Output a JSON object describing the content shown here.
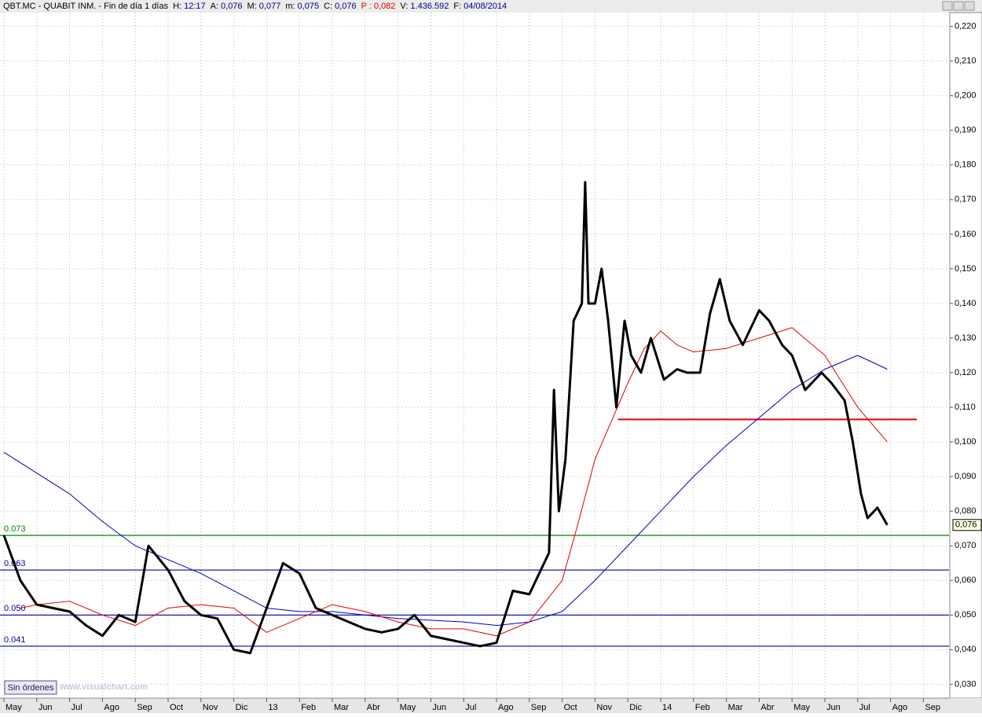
{
  "header": {
    "title": "QBT.MC - QUABIT INM. - Fin de día 1 días",
    "fields": [
      {
        "label": "H:",
        "value": "12:17"
      },
      {
        "label": "A:",
        "value": "0,076"
      },
      {
        "label": "M:",
        "value": "0,077"
      },
      {
        "label": "m:",
        "value": "0,075"
      },
      {
        "label": "C:",
        "value": "0,076"
      },
      {
        "label": "P :",
        "value": "0,082"
      },
      {
        "label": "V:",
        "value": "1.436.592"
      },
      {
        "label": "F:",
        "value": "04/08/2014"
      }
    ]
  },
  "footer": {
    "button": "Sin órdenes",
    "watermark": "www.visualchart.com"
  },
  "chart_data": {
    "type": "line",
    "xlim": [
      -0.12,
      28.78
    ],
    "ylim": [
      0.026,
      0.224
    ],
    "grid": true,
    "xticks": [
      {
        "value": 0,
        "label": "May"
      },
      {
        "value": 1,
        "label": "Jun"
      },
      {
        "value": 2,
        "label": "Jul"
      },
      {
        "value": 3,
        "label": "Ago"
      },
      {
        "value": 4,
        "label": "Sep"
      },
      {
        "value": 5,
        "label": "Oct"
      },
      {
        "value": 6,
        "label": "Nov"
      },
      {
        "value": 7,
        "label": "Dic"
      },
      {
        "value": 8,
        "label": "13"
      },
      {
        "value": 9,
        "label": "Feb"
      },
      {
        "value": 10,
        "label": "Mar"
      },
      {
        "value": 11,
        "label": "Abr"
      },
      {
        "value": 12,
        "label": "May"
      },
      {
        "value": 13,
        "label": "Jun"
      },
      {
        "value": 14,
        "label": "Jul"
      },
      {
        "value": 15,
        "label": "Ago"
      },
      {
        "value": 16,
        "label": "Sep"
      },
      {
        "value": 17,
        "label": "Oct"
      },
      {
        "value": 18,
        "label": "Nov"
      },
      {
        "value": 19,
        "label": "Dic"
      },
      {
        "value": 20,
        "label": "14"
      },
      {
        "value": 21,
        "label": "Feb"
      },
      {
        "value": 22,
        "label": "Mar"
      },
      {
        "value": 23,
        "label": "Abr"
      },
      {
        "value": 24,
        "label": "May"
      },
      {
        "value": 25,
        "label": "Jun"
      },
      {
        "value": 26,
        "label": "Jul"
      },
      {
        "value": 27,
        "label": "Ago"
      },
      {
        "value": 28,
        "label": "Sep"
      }
    ],
    "yticks": [
      {
        "value": 0.22,
        "label": "0,220"
      },
      {
        "value": 0.21,
        "label": "0,210"
      },
      {
        "value": 0.2,
        "label": "0,200"
      },
      {
        "value": 0.19,
        "label": "0,190"
      },
      {
        "value": 0.18,
        "label": "0,180"
      },
      {
        "value": 0.17,
        "label": "0,170"
      },
      {
        "value": 0.16,
        "label": "0,160"
      },
      {
        "value": 0.15,
        "label": "0,150"
      },
      {
        "value": 0.14,
        "label": "0,140"
      },
      {
        "value": 0.13,
        "label": "0,130"
      },
      {
        "value": 0.12,
        "label": "0,120"
      },
      {
        "value": 0.11,
        "label": "0,110"
      },
      {
        "value": 0.1,
        "label": "0,100"
      },
      {
        "value": 0.09,
        "label": "0,090"
      },
      {
        "value": 0.08,
        "label": "0,080"
      },
      {
        "value": 0.07,
        "label": "0,070"
      },
      {
        "value": 0.06,
        "label": "0,060"
      },
      {
        "value": 0.05,
        "label": "0,050"
      },
      {
        "value": 0.04,
        "label": "0,040"
      },
      {
        "value": 0.03,
        "label": "0,030"
      }
    ],
    "series": [
      {
        "color": "#000000",
        "width": 3,
        "x": [
          0,
          0.5,
          1,
          1.5,
          2,
          2.5,
          3,
          3.5,
          4,
          4.4,
          5,
          5.5,
          6,
          6.5,
          7,
          7.5,
          8,
          8.5,
          9,
          9.5,
          10,
          10.5,
          11,
          11.5,
          12,
          12.5,
          13,
          13.5,
          14,
          14.5,
          15,
          15.5,
          16,
          16.6,
          16.75,
          16.9,
          17.1,
          17.35,
          17.6,
          17.7,
          17.8,
          18,
          18.2,
          18.4,
          18.65,
          18.9,
          19.1,
          19.4,
          19.7,
          20.1,
          20.5,
          20.8,
          21.2,
          21.5,
          21.8,
          22.1,
          22.5,
          23,
          23.3,
          23.7,
          24,
          24.4,
          24.9,
          25.2,
          25.6,
          25.85,
          26.1,
          26.3,
          26.6,
          26.9
        ],
        "values": [
          0.073,
          0.06,
          0.053,
          0.052,
          0.051,
          0.047,
          0.044,
          0.05,
          0.048,
          0.07,
          0.063,
          0.054,
          0.05,
          0.049,
          0.04,
          0.039,
          0.052,
          0.065,
          0.062,
          0.052,
          0.05,
          0.048,
          0.046,
          0.045,
          0.046,
          0.05,
          0.044,
          0.043,
          0.042,
          0.041,
          0.042,
          0.057,
          0.056,
          0.068,
          0.115,
          0.08,
          0.095,
          0.135,
          0.14,
          0.175,
          0.14,
          0.14,
          0.15,
          0.135,
          0.11,
          0.135,
          0.125,
          0.12,
          0.13,
          0.118,
          0.121,
          0.12,
          0.12,
          0.137,
          0.147,
          0.135,
          0.128,
          0.138,
          0.135,
          0.128,
          0.125,
          0.115,
          0.12,
          0.117,
          0.112,
          0.1,
          0.085,
          0.078,
          0.081,
          0.076
        ]
      },
      {
        "color": "#e00000",
        "width": 1,
        "x": [
          0.5,
          1,
          2,
          3,
          4,
          5,
          6,
          7,
          8,
          9,
          10,
          11,
          12,
          13,
          14,
          15,
          16,
          17,
          17.5,
          18,
          19,
          19.5,
          20,
          20.5,
          21,
          22,
          23,
          24,
          25,
          26,
          26.9
        ],
        "values": [
          0.052,
          0.053,
          0.054,
          0.05,
          0.047,
          0.052,
          0.053,
          0.052,
          0.045,
          0.049,
          0.053,
          0.051,
          0.048,
          0.046,
          0.046,
          0.044,
          0.048,
          0.06,
          0.077,
          0.095,
          0.117,
          0.127,
          0.132,
          0.128,
          0.126,
          0.127,
          0.13,
          0.133,
          0.125,
          0.11,
          0.1
        ]
      },
      {
        "color": "#0000c0",
        "width": 1,
        "x": [
          0,
          2,
          3,
          4,
          5,
          6,
          7,
          8,
          9,
          10,
          12,
          14,
          15,
          16,
          17,
          18,
          19,
          20,
          21,
          22,
          23,
          24,
          25,
          26,
          26.9
        ],
        "values": [
          0.097,
          0.085,
          0.077,
          0.07,
          0.066,
          0.062,
          0.057,
          0.052,
          0.051,
          0.051,
          0.049,
          0.048,
          0.047,
          0.048,
          0.051,
          0.06,
          0.07,
          0.08,
          0.09,
          0.099,
          0.107,
          0.115,
          0.121,
          0.125,
          0.121
        ]
      }
    ],
    "levels": [
      {
        "value": 0.073,
        "label": "0.073",
        "color": "#008000"
      },
      {
        "value": 0.063,
        "label": "0.063",
        "color": "#0000a0"
      },
      {
        "value": 0.05,
        "label": "0.050",
        "color": "#0000a0"
      },
      {
        "value": 0.041,
        "label": "0.041",
        "color": "#0000a0"
      }
    ],
    "segment": {
      "value": 0.1065,
      "x": [
        18.7,
        27.8
      ],
      "color": "#e00000"
    },
    "last_price": {
      "value": 0.076,
      "label": "0,076"
    }
  }
}
